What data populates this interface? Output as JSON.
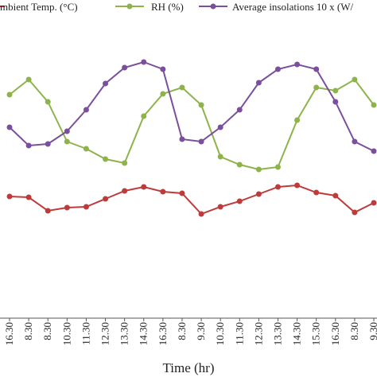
{
  "chart_data": {
    "type": "line",
    "x_label": "Time (hr)",
    "categories": [
      "16.30",
      "8.30",
      "8.30",
      "10.30",
      "11.30",
      "12.30",
      "13.30",
      "14.30",
      "16.30",
      "8.30",
      "9.30",
      "10.30",
      "11.30",
      "12.30",
      "13.30",
      "14.30",
      "15.30",
      "16.30",
      "8.30",
      "9.30"
    ],
    "series": [
      {
        "name": "mbient Temp. (°C)",
        "color": "#be3b3b",
        "values": [
          38.25,
          38,
          33.75,
          34.75,
          35,
          37.5,
          40,
          41.25,
          39.75,
          39.25,
          32.75,
          35,
          36.75,
          39,
          41.25,
          41.75,
          39.5,
          38.5,
          33.25,
          36.25
        ]
      },
      {
        "name": "RH (%)",
        "color": "#8db34a",
        "values": [
          70.25,
          75,
          68,
          55.5,
          53.25,
          50,
          48.75,
          63.5,
          70.5,
          72.5,
          67,
          50.75,
          48.25,
          46.75,
          47.5,
          62.25,
          72.5,
          71.5,
          75,
          67
        ]
      },
      {
        "name": "Average insolations 10 x (W/",
        "color": "#7a4f9c",
        "values": [
          60,
          54.25,
          54.75,
          58.75,
          65.5,
          73.75,
          78.75,
          80.5,
          78.25,
          56.25,
          55.5,
          60,
          65.5,
          74,
          78.25,
          79.75,
          78.25,
          68,
          55.5,
          52.5
        ]
      }
    ],
    "ylim": [
      0,
      100
    ]
  }
}
